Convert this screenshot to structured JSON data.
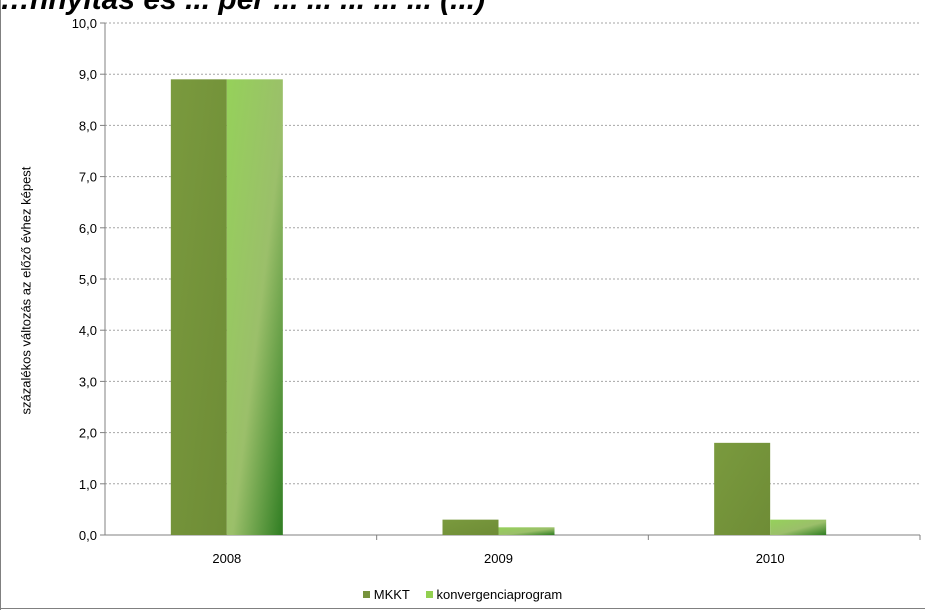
{
  "title_partial": "…nnyitás és ... per ... ... ... ... ... (...)",
  "chart_data": {
    "type": "bar",
    "categories": [
      "2008",
      "2009",
      "2010"
    ],
    "series": [
      {
        "name": "MKKT",
        "values": [
          8.9,
          0.3,
          1.8
        ],
        "color": "#77933c"
      },
      {
        "name": "konvergenciaprogram",
        "values": [
          8.9,
          0.15,
          0.3
        ],
        "color": "#92d050"
      }
    ],
    "ylabel": "százalékos változás az előző évhez képest",
    "xlabel": "",
    "ylim": [
      0,
      10
    ],
    "yticks": [
      "0,0",
      "1,0",
      "2,0",
      "3,0",
      "4,0",
      "5,0",
      "6,0",
      "7,0",
      "8,0",
      "9,0",
      "10,0"
    ],
    "grid": "horizontal dotted",
    "legend_position": "bottom"
  }
}
